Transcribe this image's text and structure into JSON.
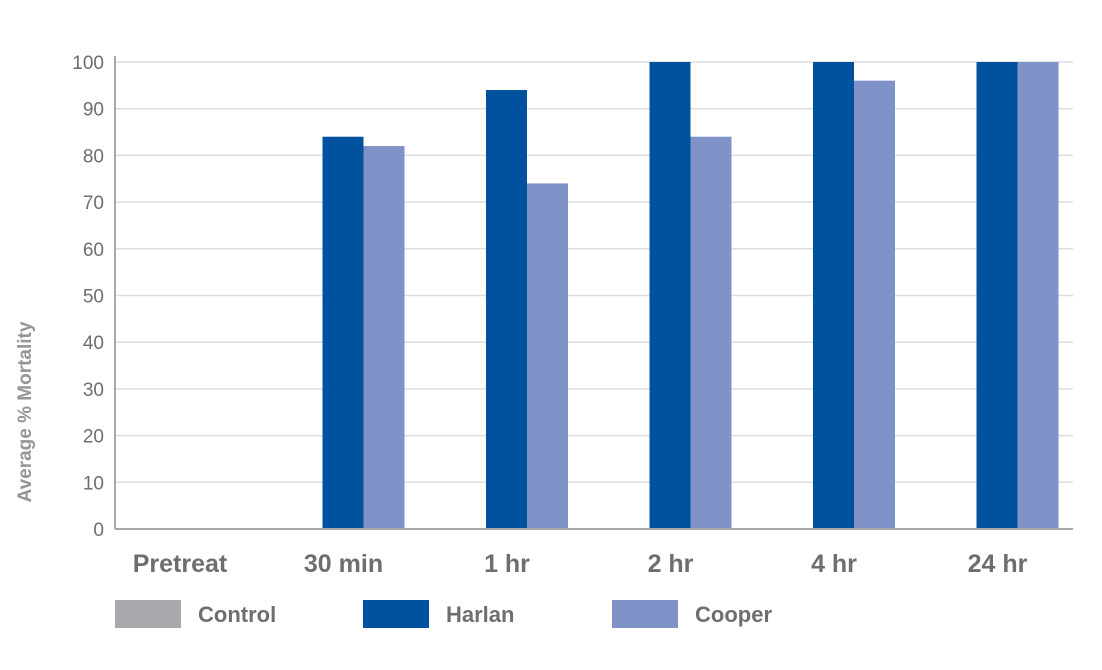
{
  "chart_data": {
    "type": "bar",
    "title": "",
    "xlabel": "",
    "ylabel": "Average % Mortality",
    "ylim": [
      0,
      100
    ],
    "yticks": [
      "0",
      "10",
      "20",
      "30",
      "40",
      "50",
      "60",
      "70",
      "80",
      "90",
      "100"
    ],
    "grid": true,
    "legend_position": "bottom",
    "categories": [
      "Pretreat",
      "30 min",
      "1 hr",
      "2 hr",
      "4 hr",
      "24 hr"
    ],
    "series": [
      {
        "name": "Control",
        "color": "#a7a9ac",
        "values": [
          0,
          0,
          0,
          0,
          0,
          0
        ]
      },
      {
        "name": "Harlan",
        "color": "#00519e",
        "values": [
          0,
          84,
          94,
          100,
          100,
          100
        ]
      },
      {
        "name": "Cooper",
        "color": "#7f93c8",
        "values": [
          0,
          82,
          74,
          84,
          96,
          100
        ]
      }
    ]
  }
}
